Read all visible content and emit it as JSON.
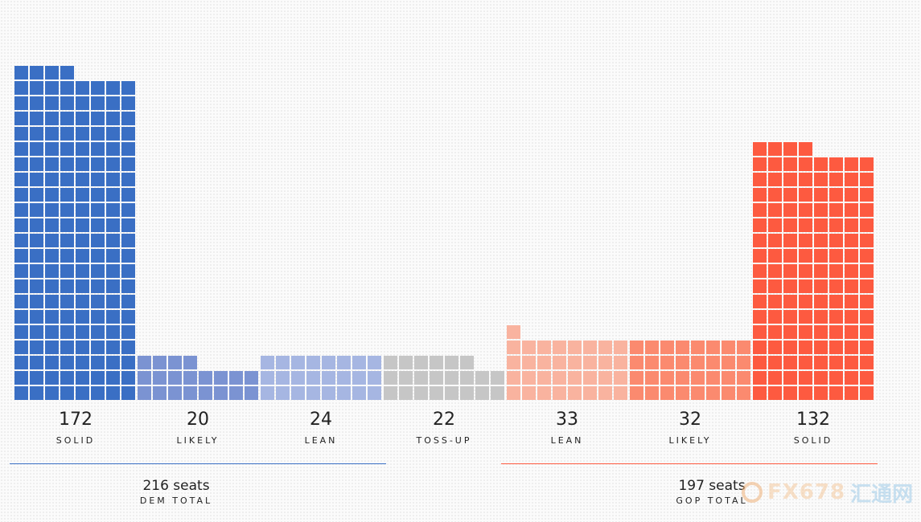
{
  "chart_data": {
    "type": "waffle-bar",
    "categories": [
      {
        "value": 172,
        "label": "SOLID",
        "party": "DEM",
        "color": "#3a6fc4"
      },
      {
        "value": 20,
        "label": "LIKELY",
        "party": "DEM",
        "color": "#7b93d2"
      },
      {
        "value": 24,
        "label": "LEAN",
        "party": "DEM",
        "color": "#a6b6e2"
      },
      {
        "value": 22,
        "label": "TOSS-UP",
        "party": "NONE",
        "color": "#c6c6c6"
      },
      {
        "value": 33,
        "label": "LEAN",
        "party": "GOP",
        "color": "#f9b39f"
      },
      {
        "value": 32,
        "label": "LIKELY",
        "party": "GOP",
        "color": "#fb8a6f"
      },
      {
        "value": 132,
        "label": "SOLID",
        "party": "GOP",
        "color": "#fd5a40"
      }
    ],
    "totals": {
      "dem": {
        "seats": "216 seats",
        "label": "DEM TOTAL",
        "color": "#3a6fc4"
      },
      "gop": {
        "seats": "197 seats",
        "label": "GOP TOTAL",
        "color": "#fd5a40"
      }
    }
  },
  "watermark": {
    "text": "FX678",
    "cn": "汇通网"
  }
}
